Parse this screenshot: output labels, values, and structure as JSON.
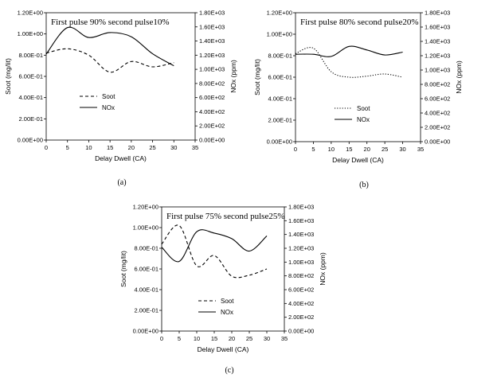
{
  "chart_data": [
    {
      "type": "line",
      "title": "First pulse 90% second pulse10%",
      "xlabel": "Delay Dwell (CA)",
      "ylabel": "Soot (mg/lit)",
      "y2label": "NOx (ppm)",
      "panel_label": "(a)",
      "xlim": [
        0,
        35
      ],
      "xticks": [
        "0",
        "5",
        "10",
        "15",
        "20",
        "25",
        "30",
        "35"
      ],
      "ylim": [
        0,
        1.2
      ],
      "yticks": [
        "0.00E+00",
        "2.00E-01",
        "4.00E-01",
        "6.00E-01",
        "8.00E-01",
        "1.00E+00",
        "1.20E+00"
      ],
      "y2lim": [
        0,
        1800
      ],
      "y2ticks": [
        "0.00E+00",
        "2.00E+02",
        "4.00E+02",
        "6.00E+02",
        "8.00E+02",
        "1.00E+03",
        "1.20E+03",
        "1.40E+03",
        "1.60E+03",
        "1.80E+03"
      ],
      "legend_position": "bottom-center",
      "grid": false,
      "series": [
        {
          "name": "Soot",
          "axis": "left",
          "style": "dashed",
          "x": [
            0,
            5,
            10,
            15,
            20,
            25,
            30
          ],
          "y": [
            0.82,
            0.86,
            0.8,
            0.64,
            0.74,
            0.69,
            0.73
          ]
        },
        {
          "name": "NOx",
          "axis": "right",
          "style": "solid",
          "x": [
            0,
            5,
            10,
            15,
            20,
            25,
            30
          ],
          "y": [
            1215,
            1590,
            1450,
            1520,
            1460,
            1220,
            1050
          ]
        }
      ]
    },
    {
      "type": "line",
      "title": "First pulse 80% second pulse20%",
      "xlabel": "Delay Dwell (CA)",
      "ylabel": "Soot (mg/lit)",
      "y2label": "NOx (ppm)",
      "panel_label": "(b)",
      "xlim": [
        0,
        35
      ],
      "xticks": [
        "0",
        "5",
        "10",
        "15",
        "20",
        "25",
        "30",
        "35"
      ],
      "ylim": [
        0,
        1.2
      ],
      "yticks": [
        "0.00E+00",
        "2.00E-01",
        "4.00E-01",
        "6.00E-01",
        "8.00E-01",
        "1.00E+00",
        "1.20E+00"
      ],
      "y2lim": [
        0,
        1800
      ],
      "y2ticks": [
        "0.00E+00",
        "2.00E+02",
        "4.00E+02",
        "6.00E+02",
        "8.00E+02",
        "1.00E+03",
        "1.20E+03",
        "1.40E+03",
        "1.60E+03",
        "1.80E+03"
      ],
      "legend_position": "bottom-center",
      "grid": false,
      "series": [
        {
          "name": "Soot",
          "axis": "left",
          "style": "dotted",
          "x": [
            0,
            5,
            10,
            15,
            20,
            25,
            30
          ],
          "y": [
            0.82,
            0.87,
            0.65,
            0.6,
            0.61,
            0.63,
            0.6
          ]
        },
        {
          "name": "NOx",
          "axis": "right",
          "style": "solid",
          "x": [
            0,
            5,
            10,
            15,
            20,
            25,
            30
          ],
          "y": [
            1220,
            1220,
            1190,
            1330,
            1280,
            1210,
            1250
          ]
        }
      ]
    },
    {
      "type": "line",
      "title": "First pulse 75% second pulse25%",
      "xlabel": "Delay Dwell (CA)",
      "ylabel": "Soot (mg/lit)",
      "y2label": "NOx (ppm)",
      "panel_label": "(c)",
      "xlim": [
        0,
        35
      ],
      "xticks": [
        "0",
        "5",
        "10",
        "15",
        "20",
        "25",
        "30",
        "35"
      ],
      "ylim": [
        0,
        1.2
      ],
      "yticks": [
        "0.00E+00",
        "2.00E-01",
        "4.00E-01",
        "6.00E-01",
        "8.00E-01",
        "1.00E+00",
        "1.20E+00"
      ],
      "y2lim": [
        0,
        1800
      ],
      "y2ticks": [
        "0.00E+00",
        "2.00E+02",
        "4.00E+02",
        "6.00E+02",
        "8.00E+02",
        "1.00E+03",
        "1.20E+03",
        "1.40E+03",
        "1.60E+03",
        "1.80E+03"
      ],
      "legend_position": "bottom-center",
      "grid": false,
      "series": [
        {
          "name": "Soot",
          "axis": "left",
          "style": "dashed",
          "x": [
            0,
            5,
            10,
            15,
            20,
            25,
            30
          ],
          "y": [
            0.84,
            1.02,
            0.63,
            0.73,
            0.53,
            0.54,
            0.6
          ]
        },
        {
          "name": "NOx",
          "axis": "right",
          "style": "solid",
          "x": [
            0,
            5,
            10,
            15,
            20,
            25,
            30
          ],
          "y": [
            1215,
            1010,
            1440,
            1420,
            1340,
            1160,
            1380
          ]
        }
      ]
    }
  ]
}
